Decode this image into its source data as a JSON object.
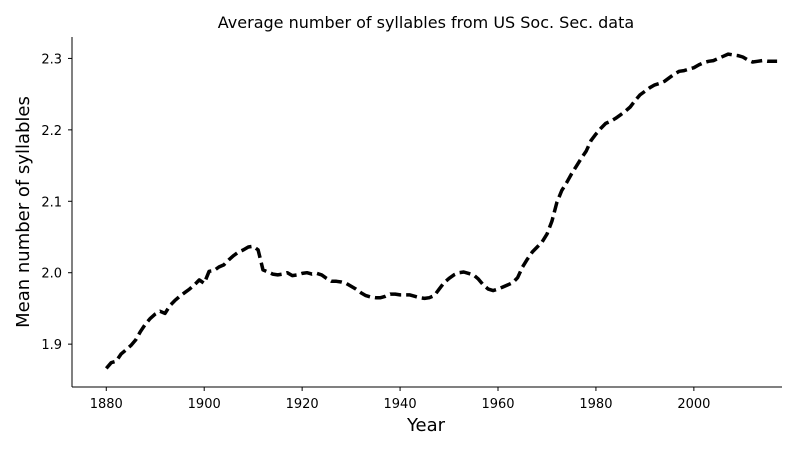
{
  "chart_data": {
    "type": "line",
    "title": "Average number of syllables from US Soc. Sec. data",
    "xlabel": "Year",
    "ylabel": "Mean number of syllables",
    "xlim": [
      1873,
      2018
    ],
    "ylim": [
      1.84,
      2.33
    ],
    "xticks": [
      1880,
      1900,
      1920,
      1940,
      1960,
      1980,
      2000
    ],
    "yticks": [
      1.9,
      2.0,
      2.1,
      2.2,
      2.3
    ],
    "xtick_labels": [
      "1880",
      "1900",
      "1920",
      "1940",
      "1960",
      "1980",
      "2000"
    ],
    "ytick_labels": [
      "1.9",
      "2.0",
      "2.1",
      "2.2",
      "2.3"
    ],
    "grid": false,
    "line_style": "dashed",
    "line_color": "#000000",
    "series": [
      {
        "x": [
          1880,
          1881,
          1882,
          1883,
          1884,
          1885,
          1886,
          1887,
          1888,
          1889,
          1890,
          1891,
          1892,
          1893,
          1894,
          1895,
          1896,
          1897,
          1898,
          1899,
          1900,
          1901,
          1902,
          1903,
          1904,
          1905,
          1906,
          1907,
          1908,
          1909,
          1910,
          1911,
          1912,
          1913,
          1914,
          1915,
          1916,
          1917,
          1918,
          1919,
          1920,
          1921,
          1922,
          1923,
          1924,
          1925,
          1926,
          1927,
          1928,
          1929,
          1930,
          1931,
          1932,
          1933,
          1934,
          1935,
          1936,
          1937,
          1938,
          1939,
          1940,
          1941,
          1942,
          1943,
          1944,
          1945,
          1946,
          1947,
          1948,
          1949,
          1950,
          1951,
          1952,
          1953,
          1954,
          1955,
          1956,
          1957,
          1958,
          1959,
          1960,
          1961,
          1962,
          1963,
          1964,
          1965,
          1966,
          1967,
          1968,
          1969,
          1970,
          1971,
          1972,
          1973,
          1974,
          1975,
          1976,
          1977,
          1978,
          1979,
          1980,
          1981,
          1982,
          1983,
          1984,
          1985,
          1986,
          1987,
          1988,
          1989,
          1990,
          1991,
          1992,
          1993,
          1994,
          1995,
          1996,
          1997,
          1998,
          1999,
          2000,
          2001,
          2002,
          2003,
          2004,
          2005,
          2006,
          2007,
          2008,
          2009,
          2010,
          2011,
          2012,
          2013,
          2014,
          2015,
          2016,
          2017
        ],
        "values": [
          1.866,
          1.874,
          1.876,
          1.886,
          1.892,
          1.898,
          1.906,
          1.918,
          1.928,
          1.936,
          1.942,
          1.946,
          1.943,
          1.954,
          1.961,
          1.967,
          1.972,
          1.977,
          1.983,
          1.99,
          1.985,
          2.002,
          2.003,
          2.008,
          2.011,
          2.018,
          2.024,
          2.029,
          2.032,
          2.036,
          2.037,
          2.032,
          2.004,
          2.001,
          1.998,
          1.997,
          1.998,
          2.0,
          1.996,
          1.997,
          1.999,
          2.0,
          1.998,
          1.999,
          1.997,
          1.992,
          1.988,
          1.988,
          1.987,
          1.985,
          1.981,
          1.977,
          1.972,
          1.968,
          1.966,
          1.965,
          1.965,
          1.967,
          1.97,
          1.97,
          1.969,
          1.969,
          1.969,
          1.967,
          1.965,
          1.964,
          1.965,
          1.968,
          1.977,
          1.986,
          1.992,
          1.997,
          2.0,
          2.001,
          1.999,
          1.997,
          1.991,
          1.983,
          1.977,
          1.975,
          1.977,
          1.98,
          1.983,
          1.986,
          1.993,
          2.008,
          2.019,
          2.029,
          2.036,
          2.043,
          2.054,
          2.072,
          2.098,
          2.115,
          2.126,
          2.138,
          2.149,
          2.16,
          2.17,
          2.185,
          2.194,
          2.202,
          2.209,
          2.212,
          2.216,
          2.221,
          2.226,
          2.232,
          2.241,
          2.249,
          2.254,
          2.259,
          2.263,
          2.265,
          2.268,
          2.273,
          2.278,
          2.282,
          2.283,
          2.285,
          2.287,
          2.291,
          2.294,
          2.296,
          2.297,
          2.3,
          2.303,
          2.306,
          2.305,
          2.304,
          2.302,
          2.298,
          2.295,
          2.296,
          2.297,
          2.296,
          2.296,
          2.296
        ]
      }
    ]
  }
}
